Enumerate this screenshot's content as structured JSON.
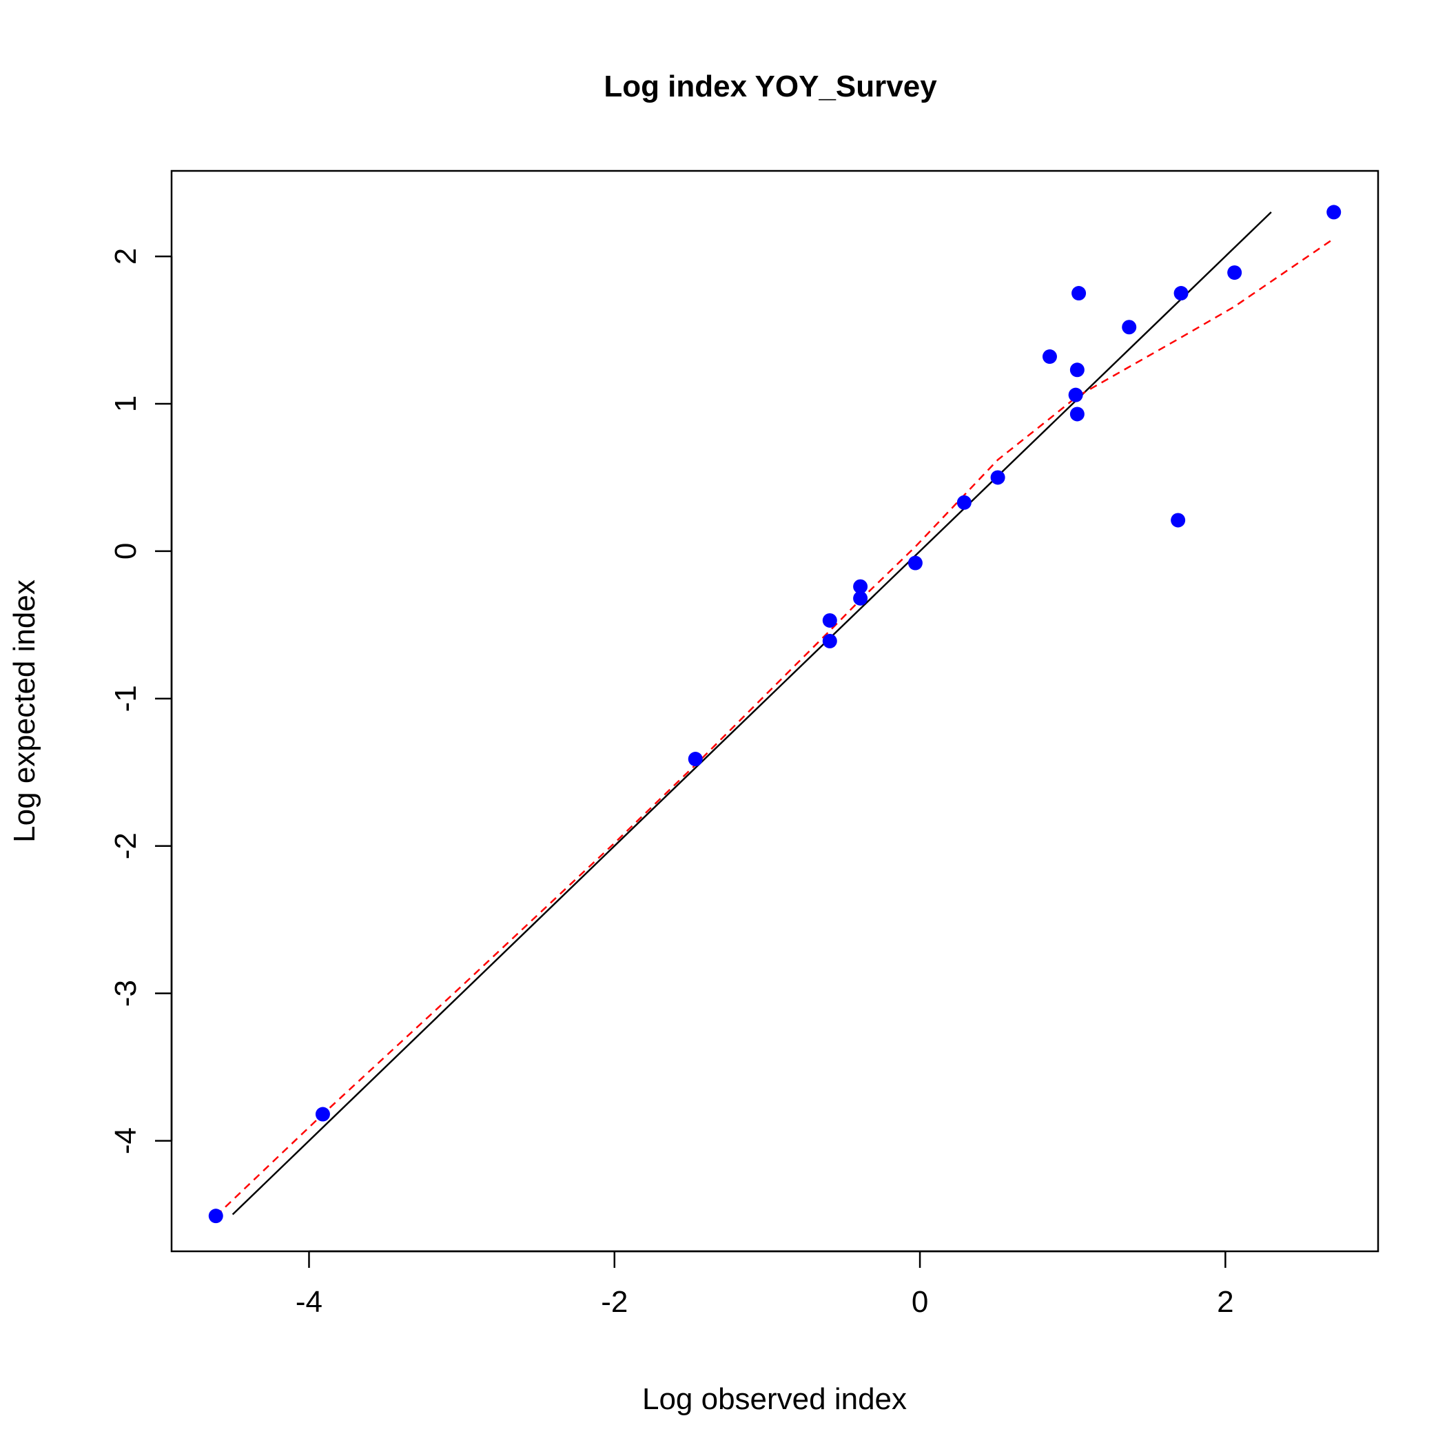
{
  "chart_data": {
    "type": "scatter",
    "title": "Log index YOY_Survey",
    "xlabel": "Log observed index",
    "ylabel": "Log expected index",
    "xlim": [
      -4.9,
      3.0
    ],
    "ylim": [
      -4.75,
      2.58
    ],
    "xticks": [
      -4,
      -2,
      0,
      2
    ],
    "yticks": [
      -4,
      -3,
      -2,
      -1,
      0,
      1,
      2
    ],
    "grid": false,
    "colors": {
      "points": "#0000ff",
      "identity_line": "#000000",
      "smoother": "#ff0000"
    },
    "points": [
      {
        "x": -4.61,
        "y": -4.51
      },
      {
        "x": -3.91,
        "y": -3.82
      },
      {
        "x": -1.47,
        "y": -1.41
      },
      {
        "x": -0.59,
        "y": -0.47
      },
      {
        "x": -0.59,
        "y": -0.61
      },
      {
        "x": -0.39,
        "y": -0.24
      },
      {
        "x": -0.39,
        "y": -0.32
      },
      {
        "x": -0.03,
        "y": -0.08
      },
      {
        "x": 0.29,
        "y": 0.33
      },
      {
        "x": 0.51,
        "y": 0.5
      },
      {
        "x": 0.85,
        "y": 1.32
      },
      {
        "x": 1.02,
        "y": 1.06
      },
      {
        "x": 1.03,
        "y": 1.23
      },
      {
        "x": 1.03,
        "y": 0.93
      },
      {
        "x": 1.04,
        "y": 1.75
      },
      {
        "x": 1.37,
        "y": 1.52
      },
      {
        "x": 1.69,
        "y": 0.21
      },
      {
        "x": 1.71,
        "y": 1.75
      },
      {
        "x": 2.06,
        "y": 1.89
      },
      {
        "x": 2.71,
        "y": 2.3
      }
    ],
    "identity_line": {
      "x": [
        -4.5,
        2.3
      ],
      "y": [
        -4.5,
        2.3
      ]
    },
    "smoother": {
      "x": [
        -4.61,
        -3.91,
        -3.0,
        -2.0,
        -1.47,
        -0.9,
        -0.59,
        -0.39,
        -0.03,
        0.29,
        0.51,
        0.85,
        1.03,
        1.37,
        1.71,
        2.06,
        2.71
      ],
      "y": [
        -4.51,
        -3.82,
        -2.95,
        -1.98,
        -1.45,
        -0.86,
        -0.54,
        -0.33,
        0.03,
        0.38,
        0.62,
        0.9,
        1.05,
        1.25,
        1.45,
        1.66,
        2.12
      ]
    }
  }
}
